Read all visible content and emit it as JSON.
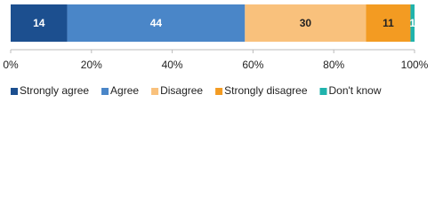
{
  "chart_data": {
    "type": "bar",
    "orientation": "horizontal",
    "stacked": true,
    "categories": [
      null
    ],
    "series": [
      {
        "name": "Strongly agree",
        "color": "#1c4f8f",
        "values": [
          14
        ]
      },
      {
        "name": "Agree",
        "color": "#4a86c8",
        "values": [
          44
        ]
      },
      {
        "name": "Disagree",
        "color": "#f9c17c",
        "values": [
          30
        ]
      },
      {
        "name": "Strongly disagree",
        "color": "#f39b22",
        "values": [
          11
        ]
      },
      {
        "name": "Don't know",
        "color": "#20b3ad",
        "values": [
          1
        ]
      }
    ],
    "xlim": [
      0,
      100
    ],
    "xticks": [
      {
        "value": 0,
        "label": "0%"
      },
      {
        "value": 20,
        "label": "20%"
      },
      {
        "value": 40,
        "label": "40%"
      },
      {
        "value": 60,
        "label": "60%"
      },
      {
        "value": 80,
        "label": "80%"
      },
      {
        "value": 100,
        "label": "100%"
      }
    ],
    "legend": "bottom"
  }
}
